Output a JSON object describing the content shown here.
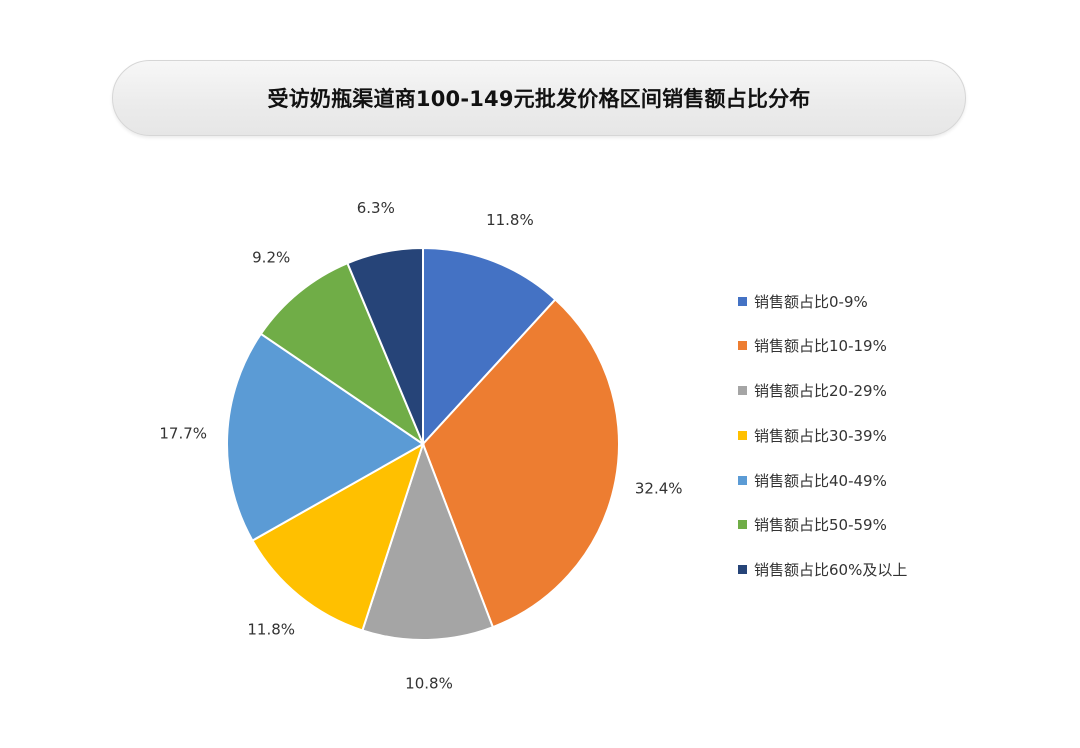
{
  "chart_data": {
    "type": "pie",
    "title": "受访奶瓶渠道商100-149元批发价格区间销售额占比分布",
    "categories": [
      "销售额占比0-9%",
      "销售额占比10-19%",
      "销售额占比20-29%",
      "销售额占比30-39%",
      "销售额占比40-49%",
      "销售额占比50-59%",
      "销售额占比60%及以上"
    ],
    "values": [
      11.8,
      32.4,
      10.8,
      11.8,
      17.7,
      9.2,
      6.3
    ],
    "data_labels": [
      "11.8%",
      "32.4%",
      "10.8%",
      "11.8%",
      "17.7%",
      "9.2%",
      "6.3%"
    ],
    "colors": [
      "#4472C4",
      "#ED7D31",
      "#A5A5A5",
      "#FFC000",
      "#5B9BD5",
      "#70AD47",
      "#264478"
    ],
    "start": "12 o'clock",
    "direction": "clockwise",
    "legend_position": "right"
  }
}
